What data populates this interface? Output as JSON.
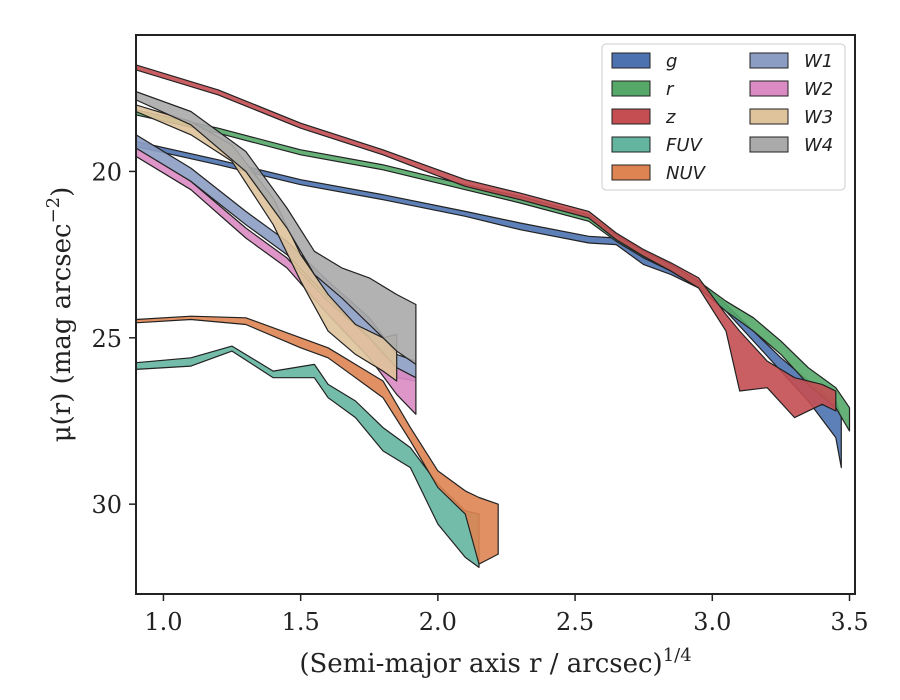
{
  "chart_data": {
    "type": "area",
    "title": "",
    "xlabel": "(Semi-major axis r / arcsec)",
    "xlabel_superscript": "1/4",
    "ylabel": "μ(r) (mag arcsec",
    "ylabel_superscript": "−2",
    "ylabel_close": ")",
    "xlim": [
      0.9,
      3.52
    ],
    "ylim": [
      32.7,
      15.9
    ],
    "y_inverted": true,
    "xticks": [
      1.0,
      1.5,
      2.0,
      2.5,
      3.0,
      3.5
    ],
    "xtick_labels": [
      "1.0",
      "1.5",
      "2.0",
      "2.5",
      "3.0",
      "3.5"
    ],
    "yticks": [
      20,
      25,
      30
    ],
    "ytick_labels": [
      "20",
      "25",
      "30"
    ],
    "grid": false,
    "legend_position": "top-right",
    "legend_columns": 2,
    "series": [
      {
        "name": "g",
        "color": "#4c72b0",
        "points": [
          [
            0.9,
            19.1,
            19.25
          ],
          [
            1.2,
            19.65,
            19.8
          ],
          [
            1.5,
            20.25,
            20.4
          ],
          [
            1.8,
            20.7,
            20.85
          ],
          [
            2.1,
            21.2,
            21.35
          ],
          [
            2.3,
            21.55,
            21.75
          ],
          [
            2.55,
            21.95,
            22.15
          ],
          [
            2.65,
            22.0,
            22.2
          ],
          [
            2.75,
            22.6,
            22.8
          ],
          [
            2.85,
            22.9,
            23.1
          ],
          [
            2.95,
            23.3,
            23.5
          ],
          [
            3.05,
            24.0,
            24.2
          ],
          [
            3.15,
            24.8,
            25.1
          ],
          [
            3.25,
            25.6,
            26.0
          ],
          [
            3.35,
            26.3,
            26.9
          ],
          [
            3.45,
            26.9,
            28.0
          ],
          [
            3.47,
            27.4,
            28.9
          ]
        ]
      },
      {
        "name": "r",
        "color": "#55a868",
        "points": [
          [
            0.9,
            18.15,
            18.3
          ],
          [
            1.2,
            18.7,
            18.85
          ],
          [
            1.5,
            19.35,
            19.5
          ],
          [
            1.8,
            19.8,
            19.95
          ],
          [
            2.1,
            20.4,
            20.55
          ],
          [
            2.3,
            20.75,
            20.95
          ],
          [
            2.55,
            21.3,
            21.5
          ],
          [
            2.65,
            21.9,
            22.1
          ],
          [
            2.75,
            22.4,
            22.6
          ],
          [
            2.85,
            22.8,
            23.0
          ],
          [
            2.95,
            23.3,
            23.5
          ],
          [
            3.05,
            23.9,
            24.2
          ],
          [
            3.15,
            24.4,
            24.8
          ],
          [
            3.25,
            25.1,
            25.5
          ],
          [
            3.35,
            25.9,
            26.4
          ],
          [
            3.45,
            26.5,
            27.1
          ],
          [
            3.5,
            27.1,
            27.8
          ]
        ]
      },
      {
        "name": "z",
        "color": "#c44e52",
        "points": [
          [
            0.9,
            16.8,
            16.95
          ],
          [
            1.2,
            17.55,
            17.7
          ],
          [
            1.5,
            18.55,
            18.7
          ],
          [
            1.8,
            19.35,
            19.5
          ],
          [
            2.1,
            20.25,
            20.45
          ],
          [
            2.3,
            20.65,
            20.85
          ],
          [
            2.55,
            21.2,
            21.4
          ],
          [
            2.65,
            21.85,
            22.05
          ],
          [
            2.75,
            22.35,
            22.55
          ],
          [
            2.85,
            22.75,
            23.0
          ],
          [
            2.95,
            23.2,
            23.5
          ],
          [
            3.05,
            24.3,
            24.8
          ],
          [
            3.1,
            24.8,
            26.6
          ],
          [
            3.2,
            25.7,
            26.5
          ],
          [
            3.3,
            26.2,
            27.4
          ],
          [
            3.4,
            26.4,
            27.0
          ],
          [
            3.45,
            26.6,
            27.2
          ]
        ]
      },
      {
        "name": "FUV",
        "color": "#64b5a0",
        "points": [
          [
            0.9,
            25.75,
            25.95
          ],
          [
            1.1,
            25.6,
            25.85
          ],
          [
            1.25,
            25.25,
            25.4
          ],
          [
            1.4,
            26.0,
            26.2
          ],
          [
            1.55,
            25.8,
            26.2
          ],
          [
            1.6,
            26.4,
            26.8
          ],
          [
            1.7,
            26.9,
            27.4
          ],
          [
            1.8,
            27.7,
            28.4
          ],
          [
            1.9,
            28.3,
            28.9
          ],
          [
            2.0,
            29.4,
            30.6
          ],
          [
            2.1,
            30.2,
            31.6
          ],
          [
            2.15,
            30.3,
            31.9
          ]
        ]
      },
      {
        "name": "NUV",
        "color": "#dd8452",
        "points": [
          [
            0.9,
            24.45,
            24.55
          ],
          [
            1.1,
            24.35,
            24.45
          ],
          [
            1.3,
            24.4,
            24.6
          ],
          [
            1.5,
            25.0,
            25.3
          ],
          [
            1.6,
            25.3,
            25.6
          ],
          [
            1.7,
            25.8,
            26.2
          ],
          [
            1.8,
            26.3,
            26.8
          ],
          [
            1.9,
            27.7,
            28.1
          ],
          [
            2.0,
            29.0,
            29.5
          ],
          [
            2.1,
            29.6,
            30.3
          ],
          [
            2.15,
            29.8,
            31.8
          ],
          [
            2.22,
            30.0,
            31.5
          ]
        ]
      },
      {
        "name": "W1",
        "color": "#8c9dc4",
        "points": [
          [
            0.9,
            18.9,
            19.3
          ],
          [
            1.1,
            19.9,
            20.3
          ],
          [
            1.3,
            21.2,
            21.6
          ],
          [
            1.45,
            22.1,
            22.5
          ],
          [
            1.6,
            23.3,
            23.8
          ],
          [
            1.75,
            24.4,
            25.0
          ],
          [
            1.85,
            25.5,
            26.2
          ],
          [
            1.92,
            25.7,
            26.3
          ]
        ]
      },
      {
        "name": "W2",
        "color": "#da8bc3",
        "points": [
          [
            0.9,
            19.3,
            19.55
          ],
          [
            1.1,
            20.3,
            20.55
          ],
          [
            1.3,
            21.7,
            22.0
          ],
          [
            1.45,
            22.6,
            22.9
          ],
          [
            1.6,
            23.9,
            24.3
          ],
          [
            1.75,
            25.0,
            25.6
          ],
          [
            1.85,
            25.9,
            26.7
          ],
          [
            1.92,
            26.2,
            27.3
          ]
        ]
      },
      {
        "name": "W3",
        "color": "#dfc39b",
        "points": [
          [
            0.9,
            18.0,
            18.2
          ],
          [
            1.1,
            18.5,
            18.9
          ],
          [
            1.25,
            19.2,
            19.7
          ],
          [
            1.4,
            20.8,
            21.6
          ],
          [
            1.5,
            22.5,
            23.3
          ],
          [
            1.6,
            23.7,
            24.8
          ],
          [
            1.7,
            24.6,
            25.5
          ],
          [
            1.8,
            25.0,
            26.0
          ],
          [
            1.85,
            24.9,
            26.3
          ]
        ]
      },
      {
        "name": "W4",
        "color": "#aaaaaa",
        "points": [
          [
            0.9,
            17.6,
            17.85
          ],
          [
            1.1,
            18.2,
            18.6
          ],
          [
            1.3,
            19.4,
            20.0
          ],
          [
            1.45,
            21.1,
            21.7
          ],
          [
            1.55,
            22.4,
            23.1
          ],
          [
            1.65,
            22.9,
            23.8
          ],
          [
            1.75,
            23.2,
            24.6
          ],
          [
            1.85,
            23.7,
            25.4
          ],
          [
            1.92,
            24.0,
            25.8
          ]
        ]
      }
    ]
  }
}
